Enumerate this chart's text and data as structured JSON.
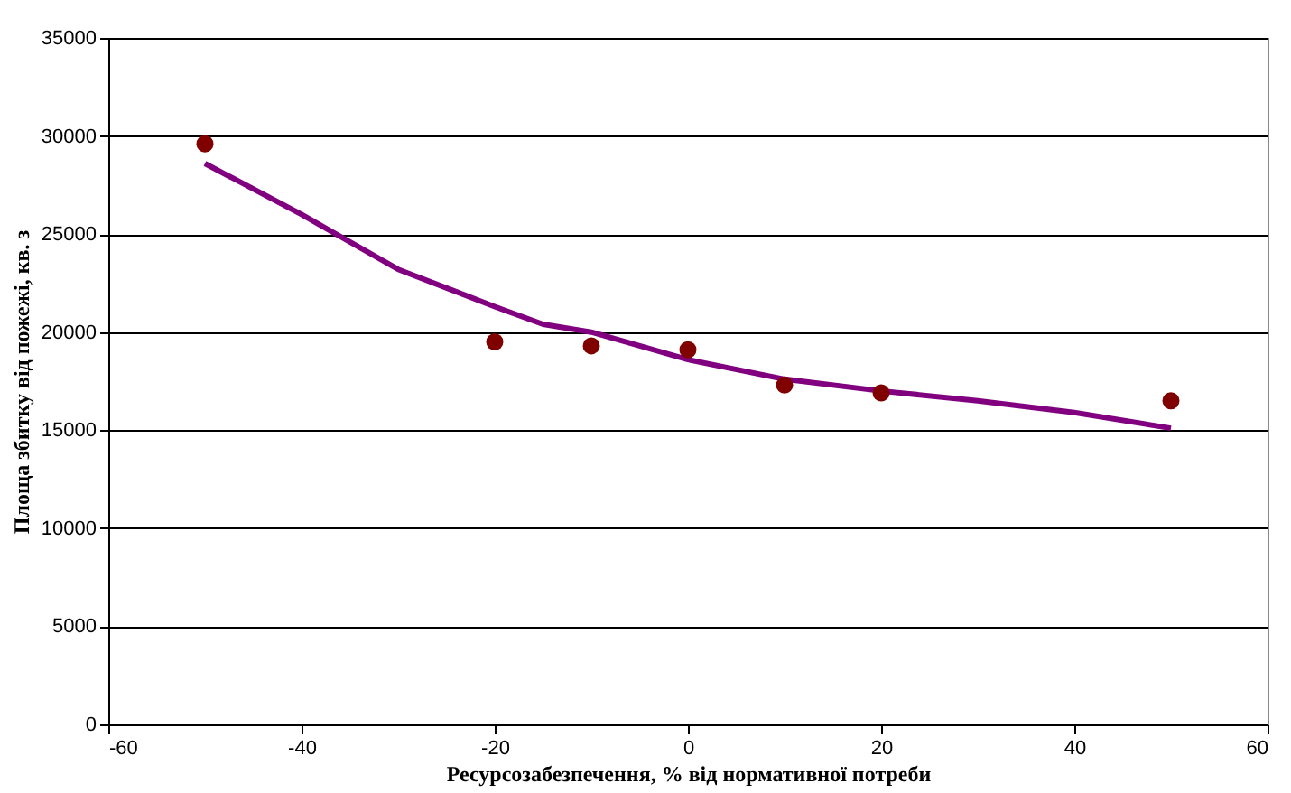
{
  "chart_data": {
    "type": "scatter",
    "xlabel": "Ресурсозабезпечення, % від нормативної потреби",
    "ylabel": "Площа збитку від пожежі, кв. з",
    "series": [
      {
        "type": "line",
        "color": "#800080",
        "marker": "none",
        "x": [
          -50,
          -40,
          -30,
          -20,
          -15,
          -10,
          0,
          10,
          20,
          30,
          40,
          50
        ],
        "values": [
          28600,
          26000,
          23200,
          21300,
          20400,
          20000,
          18600,
          17600,
          17000,
          16500,
          15900,
          15100
        ]
      },
      {
        "color": "#800000",
        "x": [
          -50,
          -20,
          -10,
          0,
          10,
          20,
          50
        ],
        "values": [
          29600,
          19500,
          19300,
          19100,
          17300,
          16900,
          16500
        ]
      }
    ],
    "xlim": [
      -60,
      60
    ],
    "xticks": [
      -60,
      -40,
      -20,
      0,
      20,
      40,
      60
    ],
    "ylim": [
      0,
      35000
    ],
    "yticks": [
      0,
      5000,
      10000,
      15000,
      20000,
      25000,
      30000,
      35000
    ],
    "grid": "y",
    "marker": "circle",
    "line_style": "solid"
  }
}
